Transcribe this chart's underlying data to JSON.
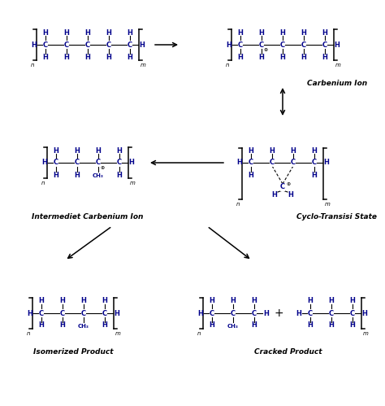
{
  "bg_color": "#ffffff",
  "blue": "#00008B",
  "black": "#000000",
  "label_carbenium": "Carbenium Ion",
  "label_cyclo": "Cyclo-Transisi State",
  "label_intermediet": "Intermediet Carbenium Ion",
  "label_isomerized": "Isomerized Product",
  "label_cracked": "Cracked Product",
  "fig_w": 4.74,
  "fig_h": 4.99,
  "dpi": 100
}
